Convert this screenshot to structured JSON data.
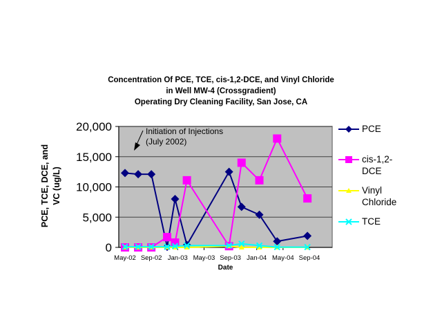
{
  "chart_data": {
    "type": "line",
    "title": [
      "Concentration Of PCE, TCE, cis-1,2-DCE, and Vinyl Chloride",
      "in Well MW-4 (Crossgradient)",
      "Operating Dry Cleaning Facility, San Jose, CA"
    ],
    "xlabel": "Date",
    "ylabel": [
      "PCE, TCE, DCE, and",
      "VC  (ug/L)"
    ],
    "ylim": [
      0,
      20000
    ],
    "yticks": [
      0,
      5000,
      10000,
      15000,
      20000
    ],
    "ytick_labels": [
      "0",
      "5,000",
      "10,000",
      "15,000",
      "20,000"
    ],
    "xlim_months": [
      0,
      28
    ],
    "xticks_months": [
      0,
      4,
      8,
      12,
      16,
      20,
      24,
      28
    ],
    "xtick_labels": [
      "May-02",
      "Sep-02",
      "Jan-03",
      "May-03",
      "Sep-03",
      "Jan-04",
      "May-04",
      "Sep-04"
    ],
    "x_unit": "months since May-02",
    "grid": true,
    "legend_position": "right",
    "annotation": {
      "text": [
        "Initiation of Injections",
        "(July 2002)"
      ],
      "target_month": 2
    },
    "x": [
      0,
      2,
      4,
      6.4,
      7.6,
      9.4,
      15.8,
      17.7,
      20.4,
      23.1,
      27.7
    ],
    "series": [
      {
        "name": "PCE",
        "color": "#000080",
        "marker": "diamond",
        "values": [
          12300,
          12100,
          12100,
          100,
          8000,
          400,
          12500,
          6700,
          5400,
          1000,
          1900
        ]
      },
      {
        "name": "cis-1,2-DCE",
        "color": "#ff00ff",
        "marker": "square",
        "values": [
          0,
          0,
          0,
          1700,
          800,
          11100,
          200,
          14000,
          11100,
          18000,
          8100
        ]
      },
      {
        "name": "Vinyl Chloride",
        "color": "#ffff00",
        "marker": "triangle",
        "values": [
          0,
          0,
          0,
          0,
          0,
          0,
          200,
          0,
          0,
          0,
          0
        ]
      },
      {
        "name": "TCE",
        "color": "#00ffff",
        "marker": "x",
        "values": [
          100,
          100,
          100,
          100,
          200,
          300,
          300,
          600,
          300,
          50,
          50
        ]
      }
    ]
  }
}
